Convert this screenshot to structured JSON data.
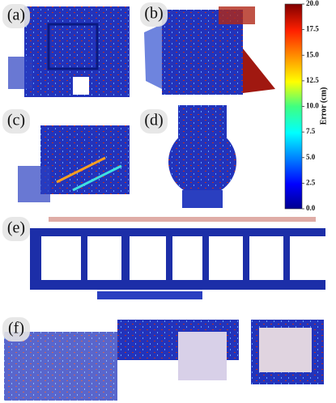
{
  "panels": [
    {
      "label": "(a)"
    },
    {
      "label": "(b)"
    },
    {
      "label": "(c)"
    },
    {
      "label": "(d)"
    },
    {
      "label": "(e)"
    },
    {
      "label": "(f)"
    }
  ],
  "colorbar": {
    "label": "Error (cm)",
    "lim": [
      0,
      20
    ],
    "ticks": [
      {
        "value": 0,
        "label": "0.0"
      },
      {
        "value": 2.5,
        "label": "2.5"
      },
      {
        "value": 5,
        "label": "5.0"
      },
      {
        "value": 7.5,
        "label": "7.5"
      },
      {
        "value": 10,
        "label": "10.0"
      },
      {
        "value": 12.5,
        "label": "12.5"
      },
      {
        "value": 15,
        "label": "15.0"
      },
      {
        "value": 17.5,
        "label": "17.5"
      },
      {
        "value": 20,
        "label": "20.0"
      }
    ]
  }
}
